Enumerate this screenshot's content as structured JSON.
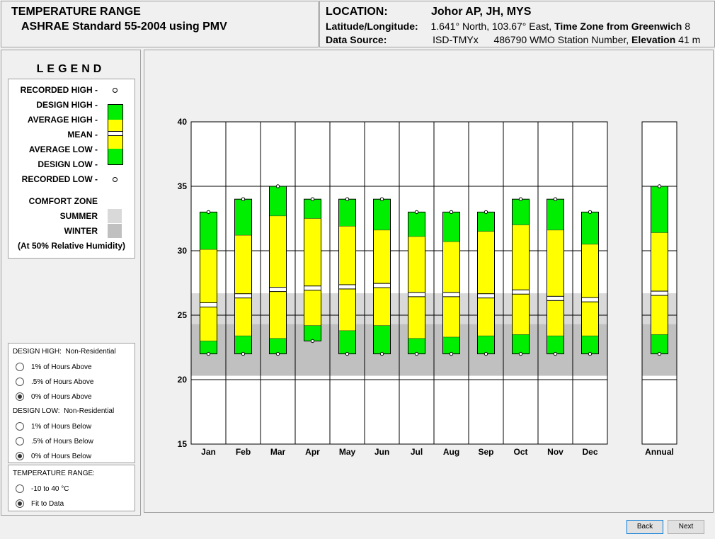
{
  "header": {
    "title": "TEMPERATURE RANGE",
    "subtitle": "ASHRAE Standard 55-2004 using PMV",
    "location_label": "LOCATION:",
    "location_value": "Johor AP, JH, MYS",
    "latlon_label": "Latitude/Longitude:",
    "latlon_value": "1.641° North, 103.67° East,",
    "timezone_label": "Time Zone from Greenwich",
    "timezone_value": "8",
    "source_label": "Data Source:",
    "source_value": "ISD-TMYx",
    "station_value": "486790 WMO Station Number,",
    "elevation_label": "Elevation",
    "elevation_value": "41 m"
  },
  "legend": {
    "title": "LEGEND",
    "recorded_high": "RECORDED HIGH -",
    "design_high": "DESIGN HIGH -",
    "average_high": "AVERAGE HIGH -",
    "mean": "MEAN -",
    "average_low": "AVERAGE LOW -",
    "design_low": "DESIGN LOW -",
    "recorded_low": "RECORDED LOW -",
    "comfort_zone": "COMFORT ZONE",
    "summer": "SUMMER",
    "winter": "WINTER",
    "note": "(At 50% Relative Humidity)"
  },
  "design_high": {
    "heading": "DESIGN HIGH:",
    "heading_value": "Non-Residential",
    "options": [
      "1% of Hours Above",
      ".5% of Hours Above",
      "0% of Hours Above"
    ],
    "selected": 2
  },
  "design_low": {
    "heading": "DESIGN LOW:",
    "heading_value": "Non-Residential",
    "options": [
      "1% of Hours Below",
      ".5% of Hours Below",
      "0% of Hours Below"
    ],
    "selected": 2
  },
  "temp_range": {
    "heading": "TEMPERATURE RANGE:",
    "options": [
      "-10 to 40 °C",
      "Fit to Data"
    ],
    "selected": 1
  },
  "buttons": {
    "back": "Back",
    "next": "Next"
  },
  "colors": {
    "green": "#00ee00",
    "yellow": "#ffff00",
    "summer": "#d9d9d9",
    "winter": "#c0c0c0"
  },
  "chart_data": {
    "type": "bar",
    "categories": [
      "Jan",
      "Feb",
      "Mar",
      "Apr",
      "May",
      "Jun",
      "Jul",
      "Aug",
      "Sep",
      "Oct",
      "Nov",
      "Dec",
      "Annual"
    ],
    "ylim": [
      15,
      40
    ],
    "yticks": [
      15,
      20,
      25,
      30,
      35,
      40
    ],
    "comfort_zone": {
      "summer": [
        20.3,
        26.7
      ],
      "winter": [
        20.3,
        24.3
      ]
    },
    "recorded_high": [
      33,
      34,
      35,
      34,
      34,
      34,
      33,
      33,
      33,
      34,
      34,
      33,
      35
    ],
    "design_high": [
      33,
      34,
      35,
      34,
      34,
      34,
      33,
      33,
      33,
      34,
      34,
      33,
      35
    ],
    "average_high": [
      30.1,
      31.2,
      32.7,
      32.5,
      31.9,
      31.6,
      31.1,
      30.7,
      31.5,
      32.0,
      31.6,
      30.5,
      31.4
    ],
    "mean": [
      25.8,
      26.5,
      27.0,
      27.1,
      27.2,
      27.3,
      26.6,
      26.6,
      26.5,
      26.8,
      26.3,
      26.2,
      26.7
    ],
    "average_low": [
      23.0,
      23.4,
      23.2,
      24.2,
      23.8,
      24.2,
      23.2,
      23.3,
      23.4,
      23.5,
      23.4,
      23.4,
      23.5
    ],
    "design_low": [
      22,
      22,
      22,
      23,
      22,
      22,
      22,
      22,
      22,
      22,
      22,
      22,
      22
    ],
    "recorded_low": [
      22,
      22,
      22,
      23,
      22,
      22,
      22,
      22,
      22,
      22,
      22,
      22,
      22
    ]
  }
}
